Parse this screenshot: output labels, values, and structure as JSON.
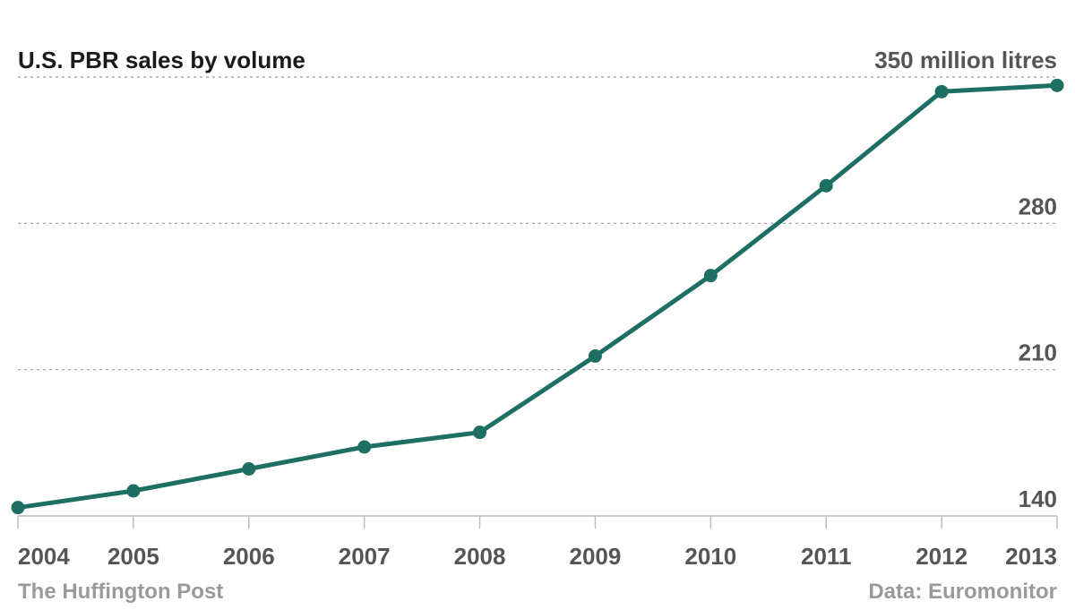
{
  "chart_data": {
    "type": "line",
    "title": "U.S. PBR sales by volume",
    "x": [
      "2004",
      "2005",
      "2006",
      "2007",
      "2008",
      "2009",
      "2010",
      "2011",
      "2012",
      "2013"
    ],
    "series": [
      {
        "values": [
          144,
          152,
          162.5,
          173,
          180,
          216.5,
          255,
          298,
          343,
          346
        ]
      }
    ],
    "ylim": [
      140,
      350
    ],
    "yticks": [
      140,
      210,
      280,
      350
    ],
    "ytick_labels": [
      "140",
      "210",
      "280",
      "350 million litres"
    ],
    "grid": true,
    "line_color": "#1e6f63"
  },
  "footer": {
    "source_left": "The Huffington Post",
    "source_right": "Data: Euromonitor"
  }
}
